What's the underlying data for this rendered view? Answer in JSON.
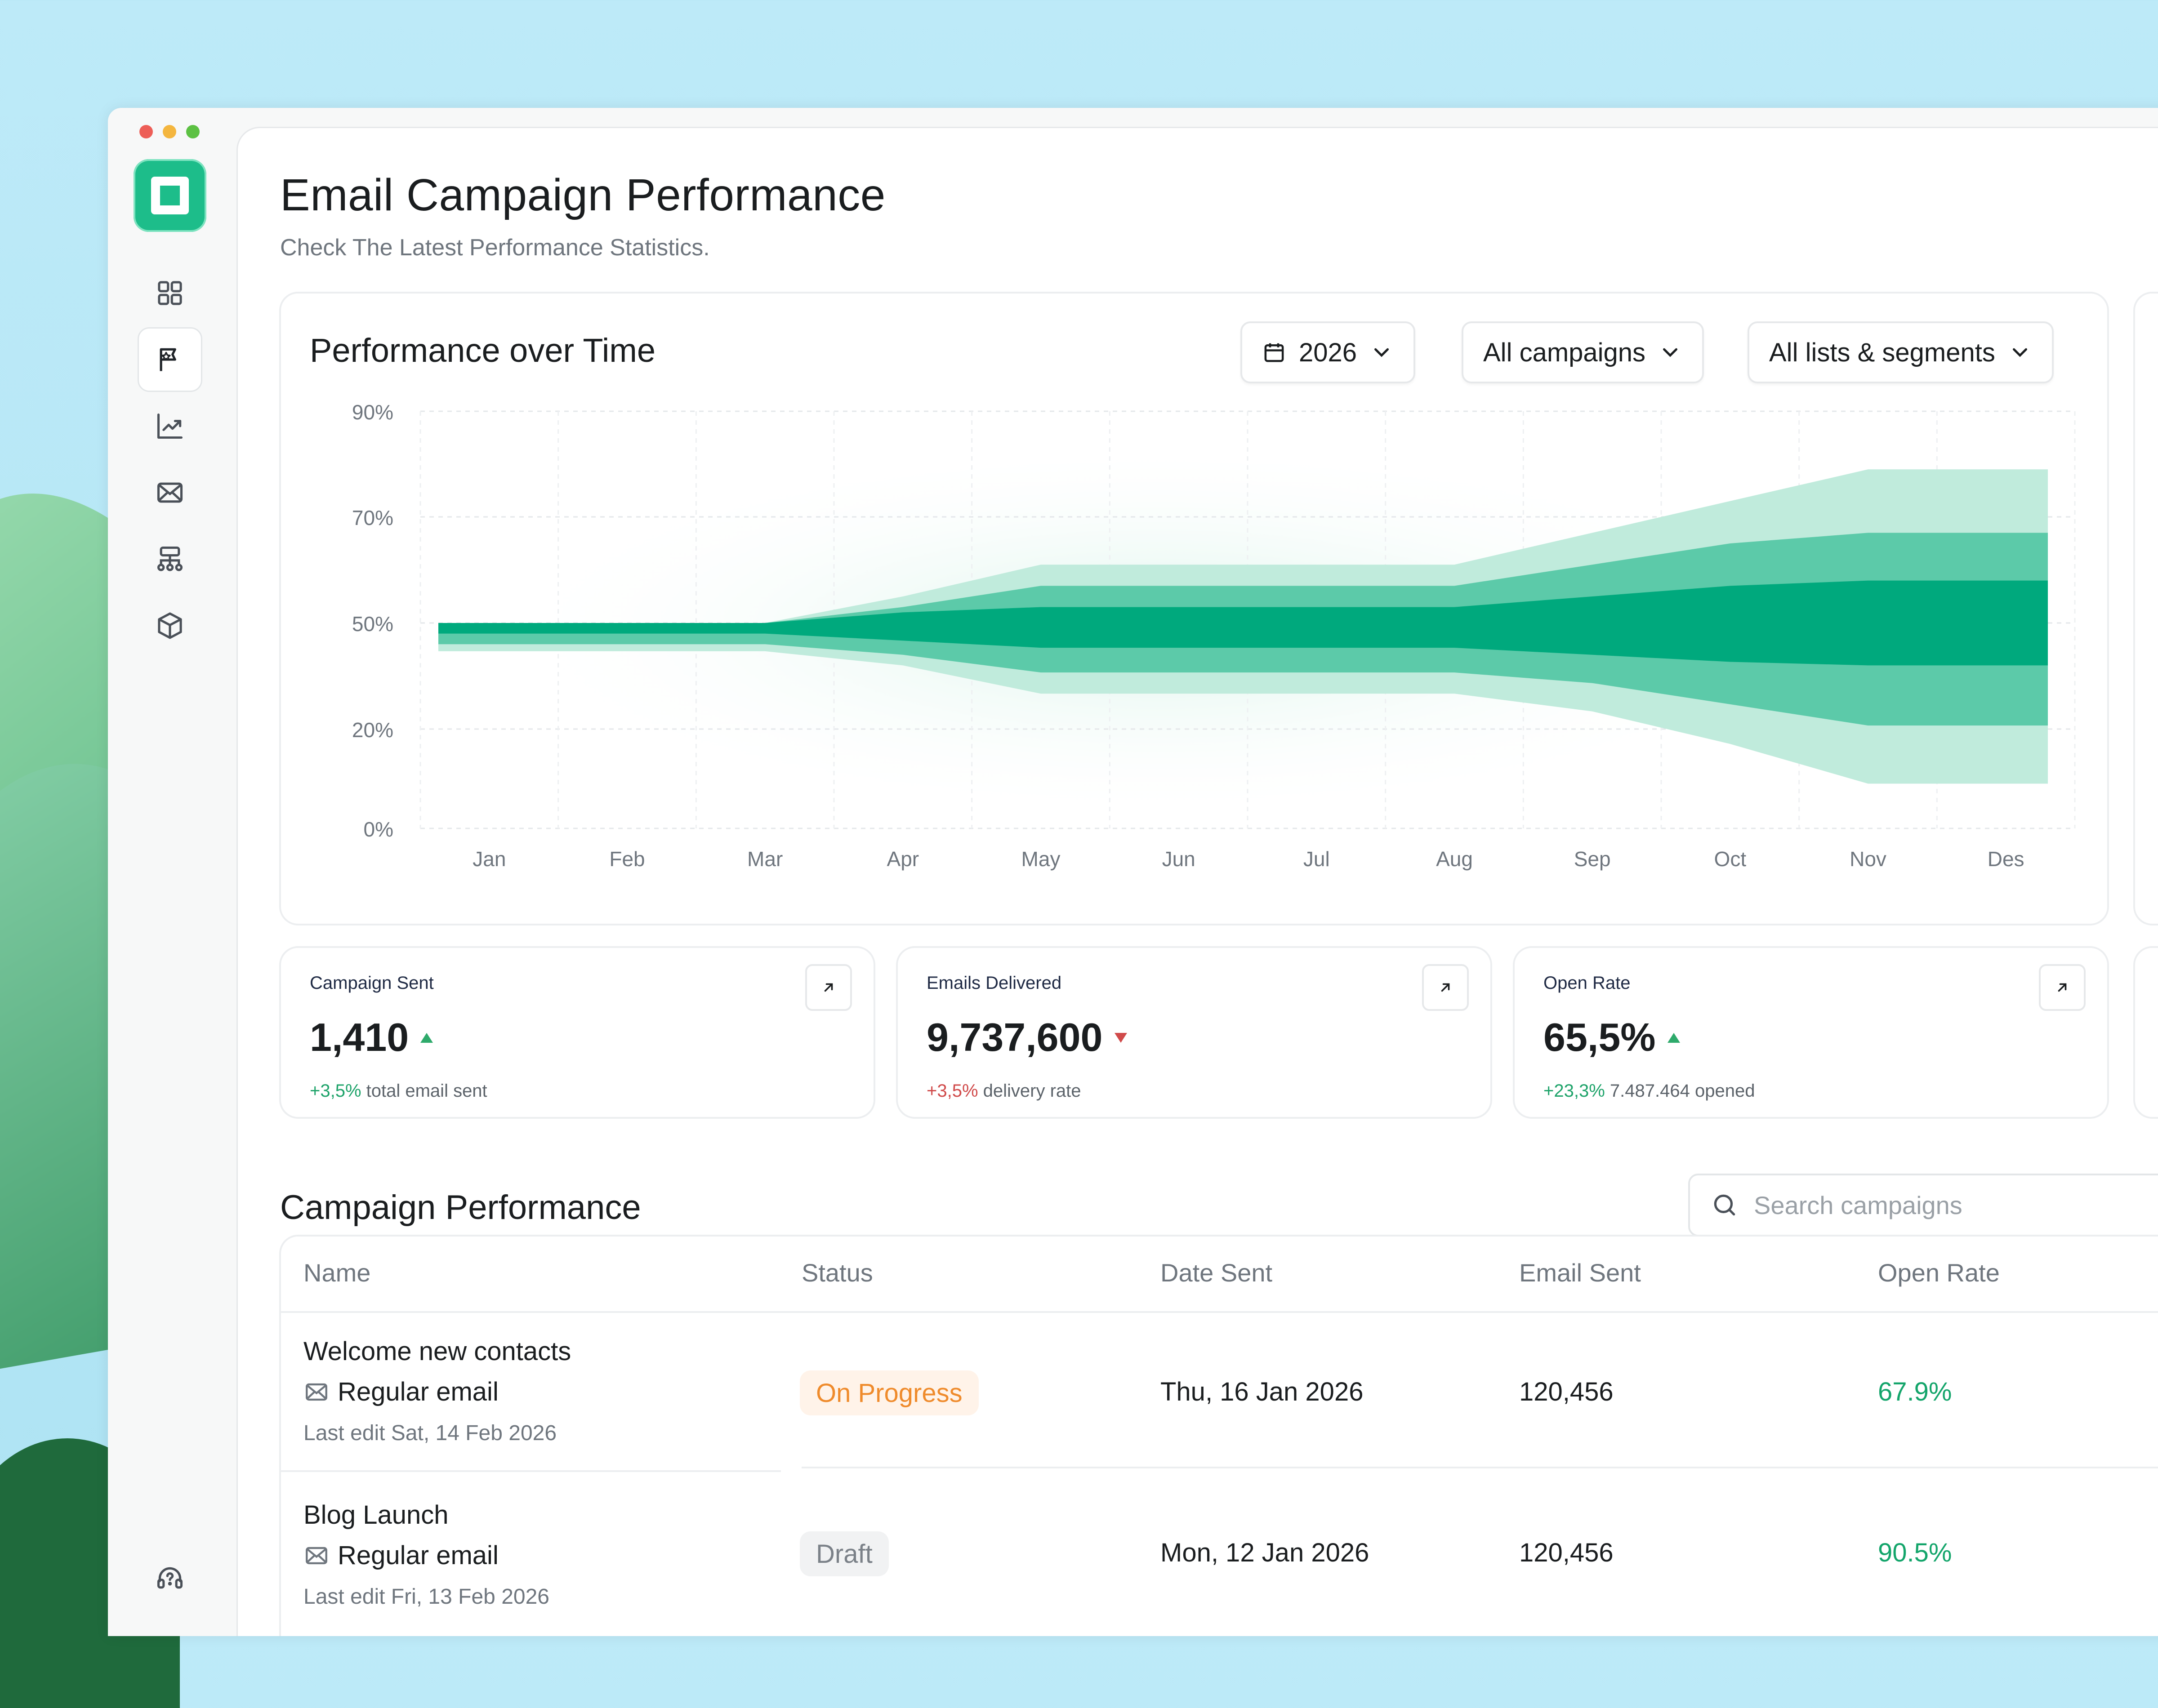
{
  "window": {
    "dots": [
      "#ed5e57",
      "#f4b63f",
      "#5cc143"
    ]
  },
  "sidebar": {
    "logo_icon": "app-logo",
    "items": [
      {
        "icon": "grid-icon",
        "active": false
      },
      {
        "icon": "flag-icon",
        "active": true
      },
      {
        "icon": "chart-line-icon",
        "active": false
      },
      {
        "icon": "mail-icon",
        "active": false
      },
      {
        "icon": "hierarchy-icon",
        "active": false
      },
      {
        "icon": "box-icon",
        "active": false
      }
    ],
    "help_icon": "help-icon"
  },
  "header": {
    "title": "Email Campaign Performance",
    "subtitle": "Check The Latest Performance Statistics."
  },
  "chart_card": {
    "title": "Performance over Time",
    "filters": {
      "year": "2026",
      "campaigns": "All campaigns",
      "lists": "All lists & segments"
    }
  },
  "chart_data": {
    "type": "area",
    "categories": [
      "Jan",
      "Feb",
      "Mar",
      "Apr",
      "May",
      "Jun",
      "Jul",
      "Aug",
      "Sep",
      "Oct",
      "Nov",
      "Des"
    ],
    "y_ticks": [
      "90%",
      "70%",
      "50%",
      "20%",
      "0%"
    ],
    "series": [
      {
        "band": "outer",
        "color": "#c0ebdc",
        "upper": [
          50,
          50,
          50,
          55,
          61,
          61,
          61,
          61,
          67,
          73,
          79,
          79
        ],
        "lower": [
          42,
          42,
          42,
          38,
          30,
          30,
          30,
          30,
          25,
          17,
          9,
          9
        ]
      },
      {
        "band": "middle",
        "color": "#5ccaa9",
        "upper": [
          50,
          50,
          50,
          53,
          57,
          57,
          57,
          57,
          61,
          65,
          67,
          67
        ],
        "lower": [
          44,
          44,
          44,
          41,
          36,
          36,
          36,
          36,
          33,
          27,
          21,
          21
        ]
      },
      {
        "band": "inner",
        "color": "#00a97d",
        "upper": [
          50,
          50,
          50,
          52,
          53,
          53,
          53,
          53,
          55,
          57,
          58,
          58
        ],
        "lower": [
          47,
          47,
          47,
          45,
          43,
          43,
          43,
          43,
          41,
          39,
          38,
          38
        ]
      }
    ],
    "grid": true
  },
  "stats": [
    {
      "label": "Campaign Sent",
      "value": "1,410",
      "trend": "up",
      "delta": "+3,5%",
      "delta_color": "pos",
      "suffix": " total email sent"
    },
    {
      "label": "Emails Delivered",
      "value": "9,737,600",
      "trend": "down",
      "delta": "+3,5%",
      "delta_color": "neg",
      "suffix": " delivery rate"
    },
    {
      "label": "Open Rate",
      "value": "65,5%",
      "trend": "up",
      "delta": "+23,3%",
      "delta_color": "pos",
      "suffix": " 7.487.464 opened"
    }
  ],
  "campaigns": {
    "title": "Campaign Performance",
    "search_placeholder": "Search campaigns",
    "columns": [
      "Name",
      "Status",
      "Date Sent",
      "Email Sent",
      "Open Rate"
    ],
    "rows": [
      {
        "name": "Welcome new contacts",
        "type": "Regular email",
        "edited": "Last edit Sat, 14 Feb 2026",
        "status": "On Progress",
        "status_kind": "prog",
        "date": "Thu, 16 Jan 2026",
        "sent": "120,456",
        "open_rate": "67.9%"
      },
      {
        "name": "Blog Launch",
        "type": "Regular email",
        "edited": "Last edit Fri, 13 Feb 2026",
        "status": "Draft",
        "status_kind": "draft",
        "date": "Mon, 12 Jan 2026",
        "sent": "120,456",
        "open_rate": "90.5%"
      }
    ]
  }
}
